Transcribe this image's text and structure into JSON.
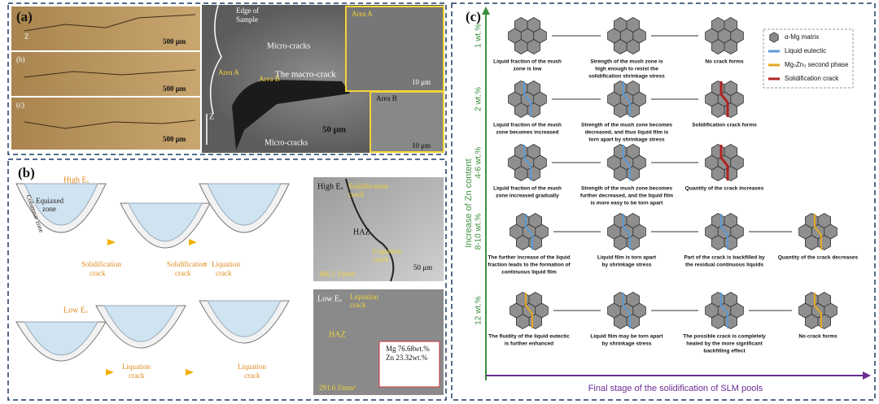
{
  "panel_a": {
    "label": "(a)",
    "strip_labels": [
      "(b)",
      "(c)"
    ],
    "scale_bars": [
      "500 μm",
      "500 μm",
      "500 μm"
    ],
    "axis": "Z",
    "sem": {
      "edge": [
        "Edge of",
        "Sample"
      ],
      "micro_cracks": [
        "Micro-cracks",
        "Micro-cracks"
      ],
      "area_a": "Area A",
      "area_b": "Area B",
      "macro_crack": "The macro-crack",
      "scale": "50 μm",
      "axis": "Z"
    },
    "inset_a": {
      "title": "Area A",
      "scale": "10 μm"
    },
    "inset_b": {
      "title": "Area B",
      "scale": "10 μm"
    }
  },
  "panel_b": {
    "label": "(b)",
    "high": "High Eᵥ",
    "low": "Low Eᵥ",
    "equiaxed": [
      "Equiaxed",
      "zone"
    ],
    "columnar": "Columnar zone",
    "solidification_crack": [
      "Solidification",
      "crack"
    ],
    "combined": [
      "Solidification",
      "+",
      "Liquation",
      "crack",
      "crack"
    ],
    "liquation_crack": [
      "Liquation",
      "crack"
    ],
    "liquation_crack_2": [
      "Liquation",
      "crack"
    ],
    "micro_high": {
      "title": "High Eᵥ",
      "solid": [
        "Solidification",
        "crack"
      ],
      "haz": "HAZ",
      "liq": [
        "Liquation",
        "crack"
      ],
      "energy": "486.1 J/mm³",
      "scale": "50 μm"
    },
    "micro_low": {
      "title": "Low Eᵥ",
      "liq": [
        "Liquation",
        "crack"
      ],
      "haz": "HAZ",
      "mg": "Mg 76.68wt.%",
      "zn": "Zn 23.32wt.%",
      "energy": "291.6 J/mm³"
    }
  },
  "panel_c": {
    "label": "(c)",
    "y_axis": "Increase of Zn content",
    "x_axis": "Final stage of the solidification of  SLM pools",
    "legend": [
      "α-Mg matrix",
      "Liquid eutectic",
      "Mg₇Zn₃ second phase",
      "Solidification crack"
    ],
    "rows": [
      {
        "label": "1 wt.%",
        "cols": [
          [
            "Liquid fraction of the mush",
            "zone is low"
          ],
          [
            "Strength of the mush zone is",
            "high enough to resist the",
            "solidification shrinkage stress"
          ],
          [
            "No crack forms"
          ]
        ]
      },
      {
        "label": "2 wt.%",
        "cols": [
          [
            "Liquid fraction of the mush",
            "zone becomes increased"
          ],
          [
            "Strength of the mush zone becomes",
            "decreased, and thus liquid film is",
            "torn apart by shrinkage stress"
          ],
          [
            "Solidification crack forms"
          ]
        ]
      },
      {
        "label": "4-6 wt.%",
        "cols": [
          [
            "Liquid fraction of the mush",
            "zone increased gradually"
          ],
          [
            "Strength of the mush zone becomes",
            "further decreased, and the liquid film",
            "is more easy to be torn apart"
          ],
          [
            "Quantity of the crack increases"
          ]
        ]
      },
      {
        "label": "8-10 wt.%",
        "cols": [
          [
            "The further increase of the liquid",
            "fraction leads to the formation of",
            "continuous liquid film"
          ],
          [
            "Liquid film is torn apart",
            "by shrinkage stress"
          ],
          [
            "Part of the crack is backfilled by",
            "the residual continuous liquids"
          ],
          [
            "Quantity of the crack decreases"
          ]
        ]
      },
      {
        "label": "12 wt.%",
        "cols": [
          [
            "The fluidity of the liquid eutectic",
            "is further enhanced"
          ],
          [
            "Liquid film may be torn apart",
            "by shrinkage stress"
          ],
          [
            "The possible crack is completely",
            "healed by the more significant",
            "backfilling effect"
          ],
          [
            "No crack forms"
          ]
        ]
      }
    ]
  }
}
